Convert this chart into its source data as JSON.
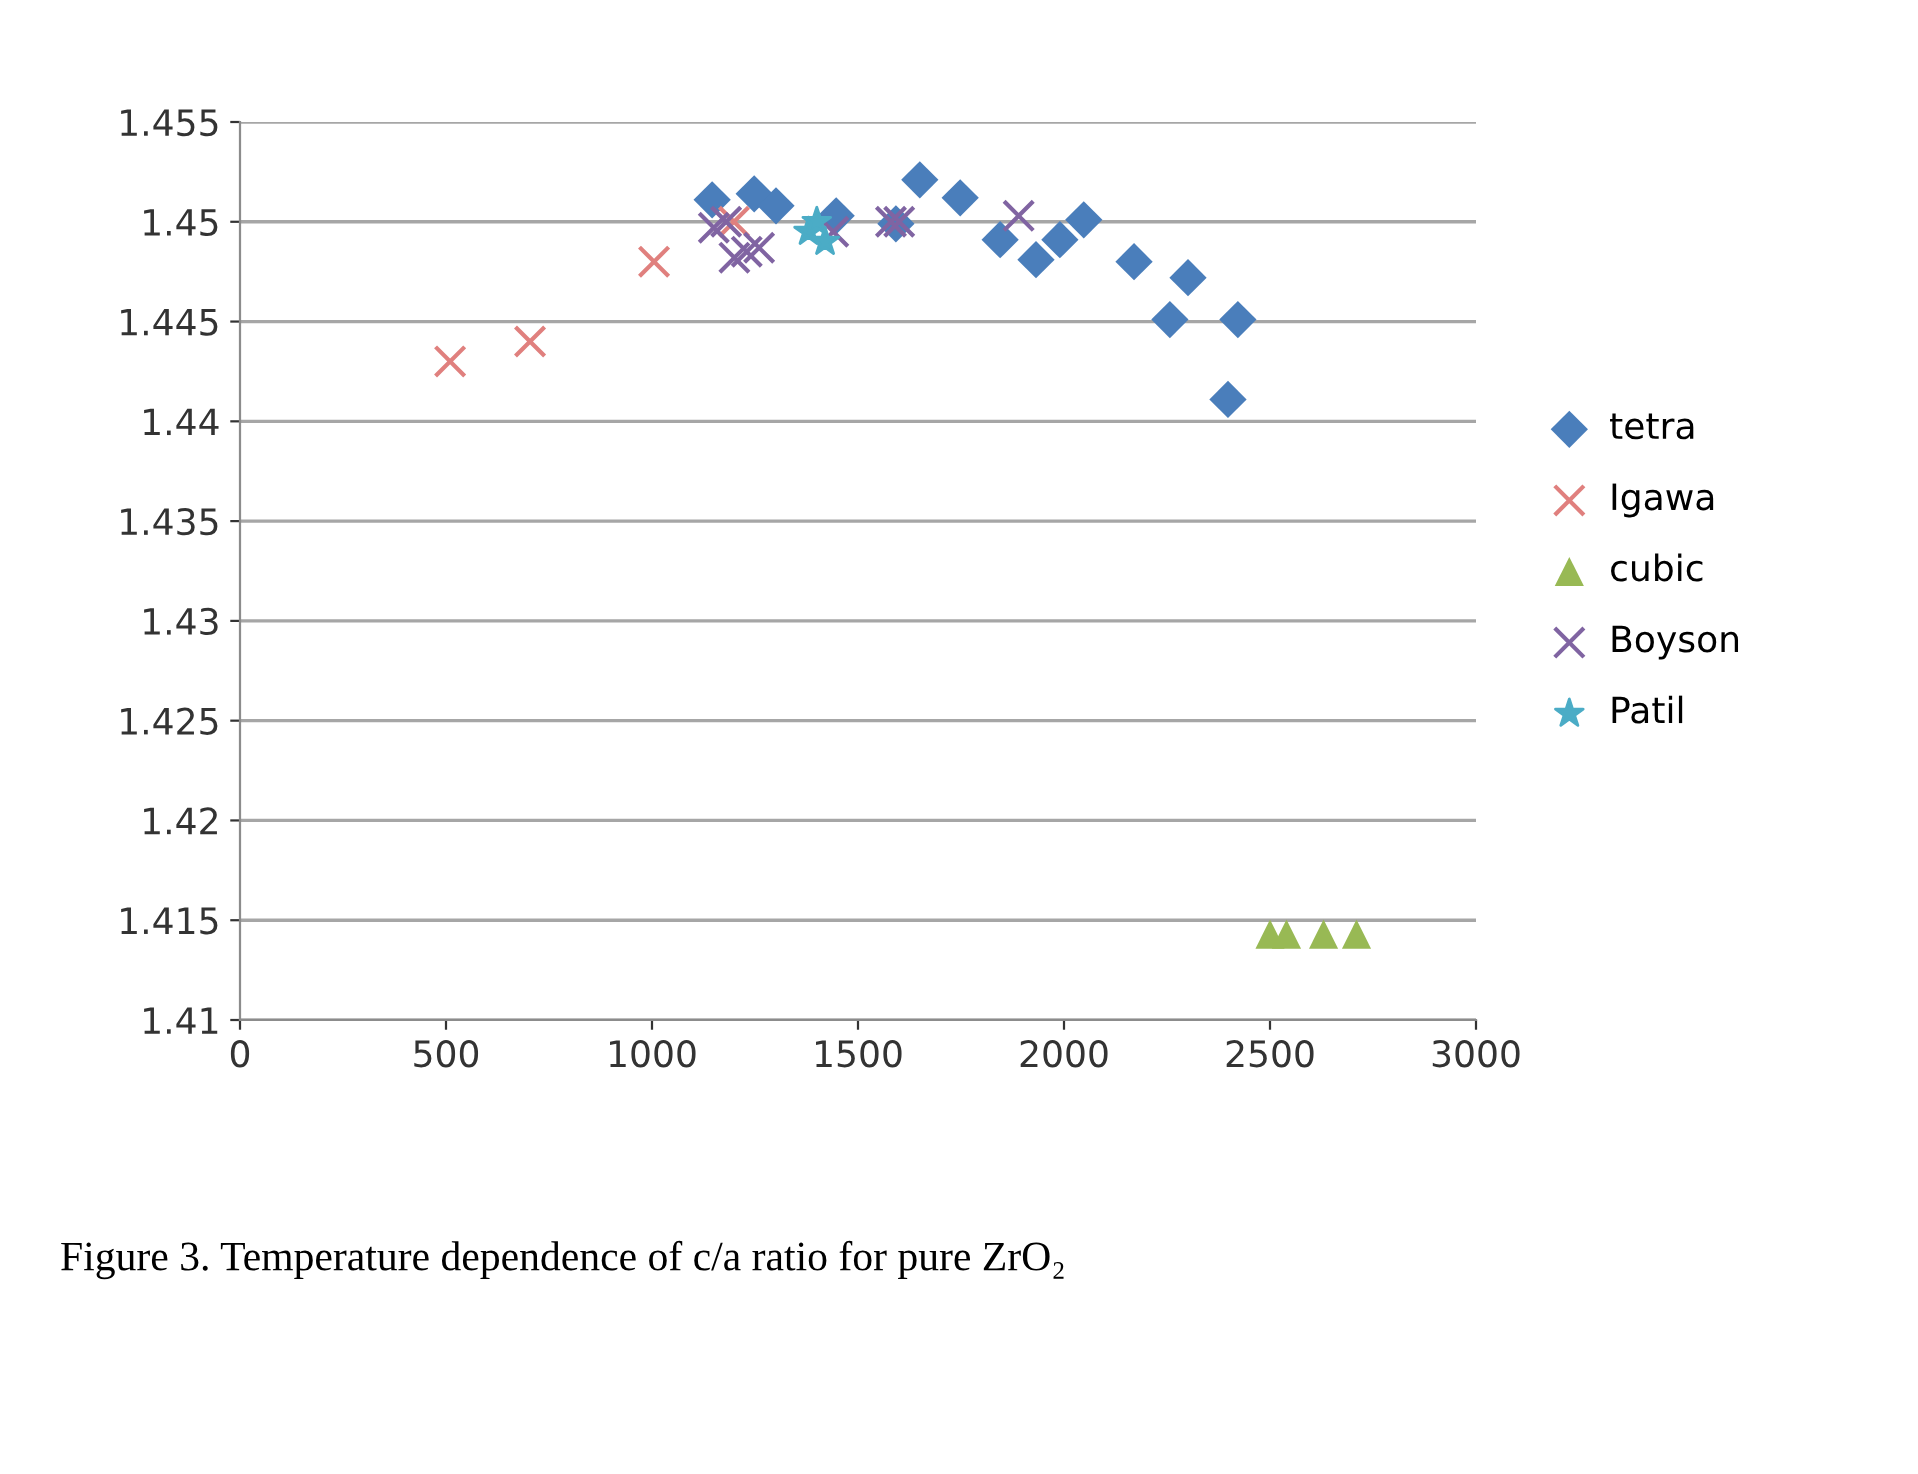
{
  "chart_data": {
    "type": "scatter",
    "xlim": [
      0,
      3000
    ],
    "ylim": [
      1.41,
      1.455
    ],
    "xticks": [
      0,
      500,
      1000,
      1500,
      2000,
      2500,
      3000
    ],
    "yticks": [
      1.41,
      1.415,
      1.42,
      1.425,
      1.43,
      1.435,
      1.44,
      1.445,
      1.45,
      1.455
    ],
    "grid": "y",
    "legend": "right",
    "annotations": [
      "Figure 3. Temperature dependence of c/a ratio for pure ZrO₂"
    ],
    "series": [
      {
        "name": "tetra",
        "color": "#4a7ebb",
        "marker": "diamond",
        "x": [
          1146,
          1248,
          1301,
          1447,
          1592,
          1650,
          1748,
          1845,
          1932,
          1990,
          2048,
          2170,
          2301,
          2257,
          2422,
          2398
        ],
        "values": [
          1.4511,
          1.4514,
          1.4508,
          1.4503,
          1.4499,
          1.4521,
          1.4512,
          1.4491,
          1.4481,
          1.4491,
          1.4501,
          1.448,
          1.4472,
          1.4451,
          1.4451,
          1.4411
        ]
      },
      {
        "name": "Igawa",
        "color": "#e0807e",
        "marker": "cross",
        "x": [
          510,
          704,
          1005,
          1199
        ],
        "values": [
          1.443,
          1.444,
          1.448,
          1.45
        ]
      },
      {
        "name": "cubic",
        "color": "#98b954",
        "marker": "triangle",
        "x": [
          2500,
          2540,
          2630,
          2710
        ],
        "values": [
          1.4143,
          1.4143,
          1.4143,
          1.4143
        ]
      },
      {
        "name": "Boyson",
        "color": "#8064a2",
        "marker": "cross",
        "x": [
          1150,
          1200,
          1230,
          1260,
          1180,
          1440,
          1580,
          1600,
          1890
        ],
        "values": [
          1.4497,
          1.4482,
          1.4485,
          1.4487,
          1.45,
          1.4495,
          1.45,
          1.45,
          1.4503
        ]
      },
      {
        "name": "Patil",
        "color": "#4bacc6",
        "marker": "star",
        "x": [
          1380,
          1400,
          1420
        ],
        "values": [
          1.4495,
          1.45,
          1.449
        ]
      }
    ]
  }
}
